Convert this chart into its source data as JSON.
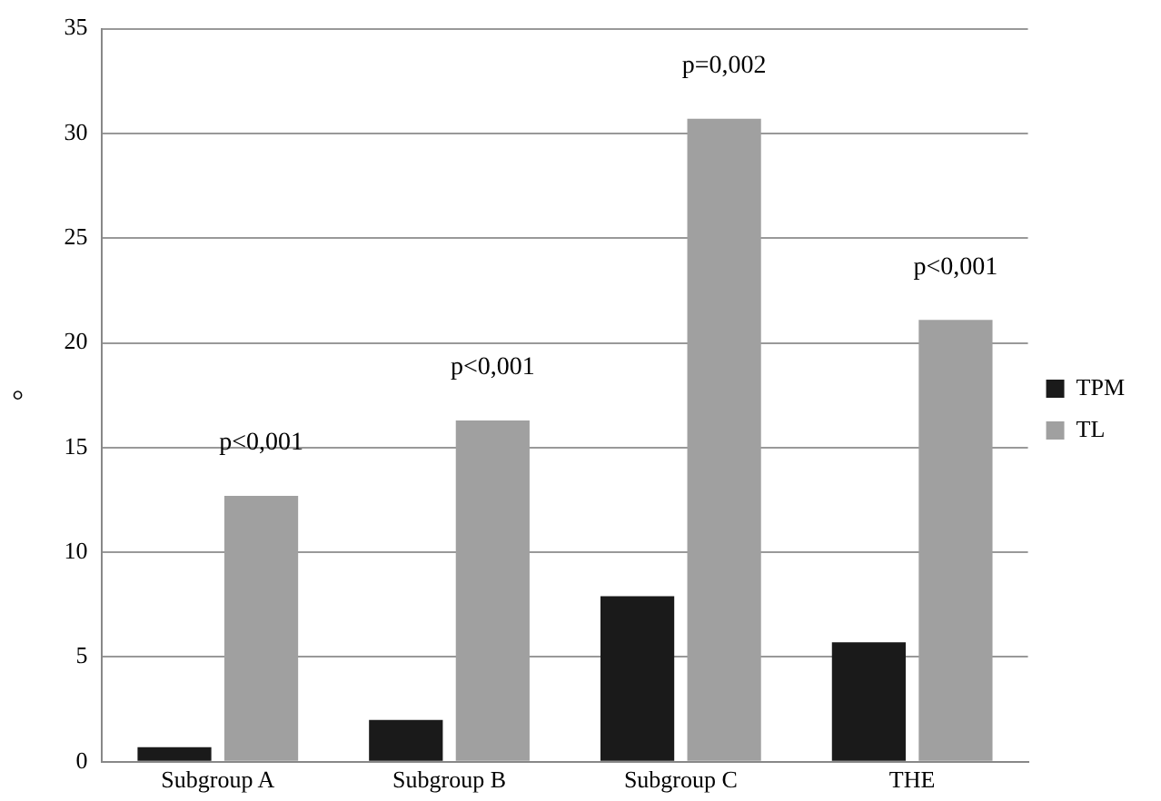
{
  "chart_data": {
    "type": "bar",
    "ylabel": "°",
    "categories": [
      "Subgroup A",
      "Subgroup B",
      "Subgroup C",
      "THE"
    ],
    "series": [
      {
        "name": "TPM",
        "color": "#1a1a1a",
        "values": [
          0.7,
          2.0,
          7.9,
          5.7
        ]
      },
      {
        "name": "TL",
        "color": "#a0a0a0",
        "values": [
          12.7,
          16.3,
          30.7,
          21.1
        ]
      }
    ],
    "ylim": [
      0,
      35
    ],
    "yticks": [
      0,
      5,
      10,
      15,
      20,
      25,
      30,
      35
    ],
    "grid": "y",
    "legend": "right",
    "annotations": [
      {
        "text": "p<0,001",
        "x": "Subgroup A",
        "y": 12.7
      },
      {
        "text": "p<0,001",
        "x": "Subgroup B",
        "y": 16.3
      },
      {
        "text": "p=0,002",
        "x": "Subgroup C",
        "y": 30.7
      },
      {
        "text": "p<0,001",
        "x": "THE",
        "y": 21.1
      }
    ]
  }
}
